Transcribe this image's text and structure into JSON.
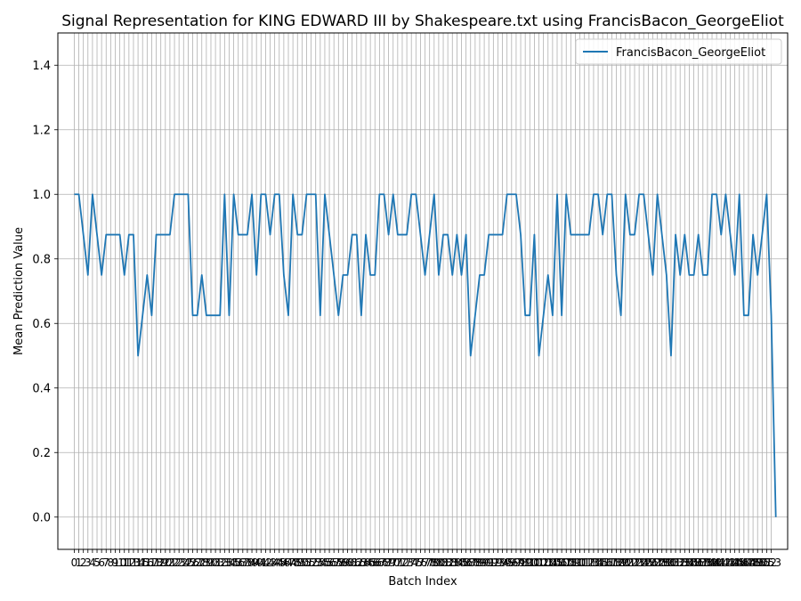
{
  "chart_data": {
    "type": "line",
    "title": "Signal Representation for KING EDWARD III by Shakespeare.txt using FrancisBacon_GeorgeEliot",
    "xlabel": "Batch Index",
    "ylabel": "Mean Prediction Value",
    "xlim": [
      -3.6,
      156.6
    ],
    "ylim": [
      -0.1,
      1.5
    ],
    "yticks": [
      0.0,
      0.2,
      0.4,
      0.6,
      0.8,
      1.0,
      1.2,
      1.4
    ],
    "ytick_labels": [
      "0.0",
      "0.2",
      "0.4",
      "0.6",
      "0.8",
      "1.0",
      "1.2",
      "1.4"
    ],
    "x_tick_count": 154,
    "x_grid": true,
    "y_grid": true,
    "legend": "upper-right",
    "series": [
      {
        "name": "FrancisBacon_GeorgeEliot",
        "color": "#1f77b4",
        "values": [
          1,
          1,
          0.875,
          0.75,
          1,
          0.875,
          0.75,
          0.875,
          0.875,
          0.875,
          0.875,
          0.75,
          0.875,
          0.875,
          0.5,
          0.625,
          0.75,
          0.625,
          0.875,
          0.875,
          0.875,
          0.875,
          1,
          1,
          1,
          1,
          0.625,
          0.625,
          0.75,
          0.625,
          0.625,
          0.625,
          0.625,
          1,
          0.625,
          1,
          0.875,
          0.875,
          0.875,
          1,
          0.75,
          1,
          1,
          0.875,
          1,
          1,
          0.75,
          0.625,
          1,
          0.875,
          0.875,
          1,
          1,
          1,
          0.625,
          1,
          0.875,
          0.75,
          0.625,
          0.75,
          0.75,
          0.875,
          0.875,
          0.625,
          0.875,
          0.75,
          0.75,
          1,
          1,
          0.875,
          1,
          0.875,
          0.875,
          0.875,
          1,
          1,
          0.875,
          0.75,
          0.875,
          1,
          0.75,
          0.875,
          0.875,
          0.75,
          0.875,
          0.75,
          0.875,
          0.5,
          0.625,
          0.75,
          0.75,
          0.875,
          0.875,
          0.875,
          0.875,
          1,
          1,
          1,
          0.875,
          0.625,
          0.625,
          0.875,
          0.5,
          0.625,
          0.75,
          0.625,
          1,
          0.625,
          1,
          0.875,
          0.875,
          0.875,
          0.875,
          0.875,
          1,
          1,
          0.875,
          1,
          1,
          0.75,
          0.625,
          1,
          0.875,
          0.875,
          1,
          1,
          0.875,
          0.75,
          1,
          0.875,
          0.75,
          0.5,
          0.875,
          0.75,
          0.875,
          0.75,
          0.75,
          0.875,
          0.75,
          0.75,
          1,
          1,
          0.875,
          1,
          0.875,
          0.75,
          1,
          0.625,
          0.625,
          0.875,
          0.75,
          0.875,
          1,
          0.625,
          0
        ]
      }
    ]
  }
}
